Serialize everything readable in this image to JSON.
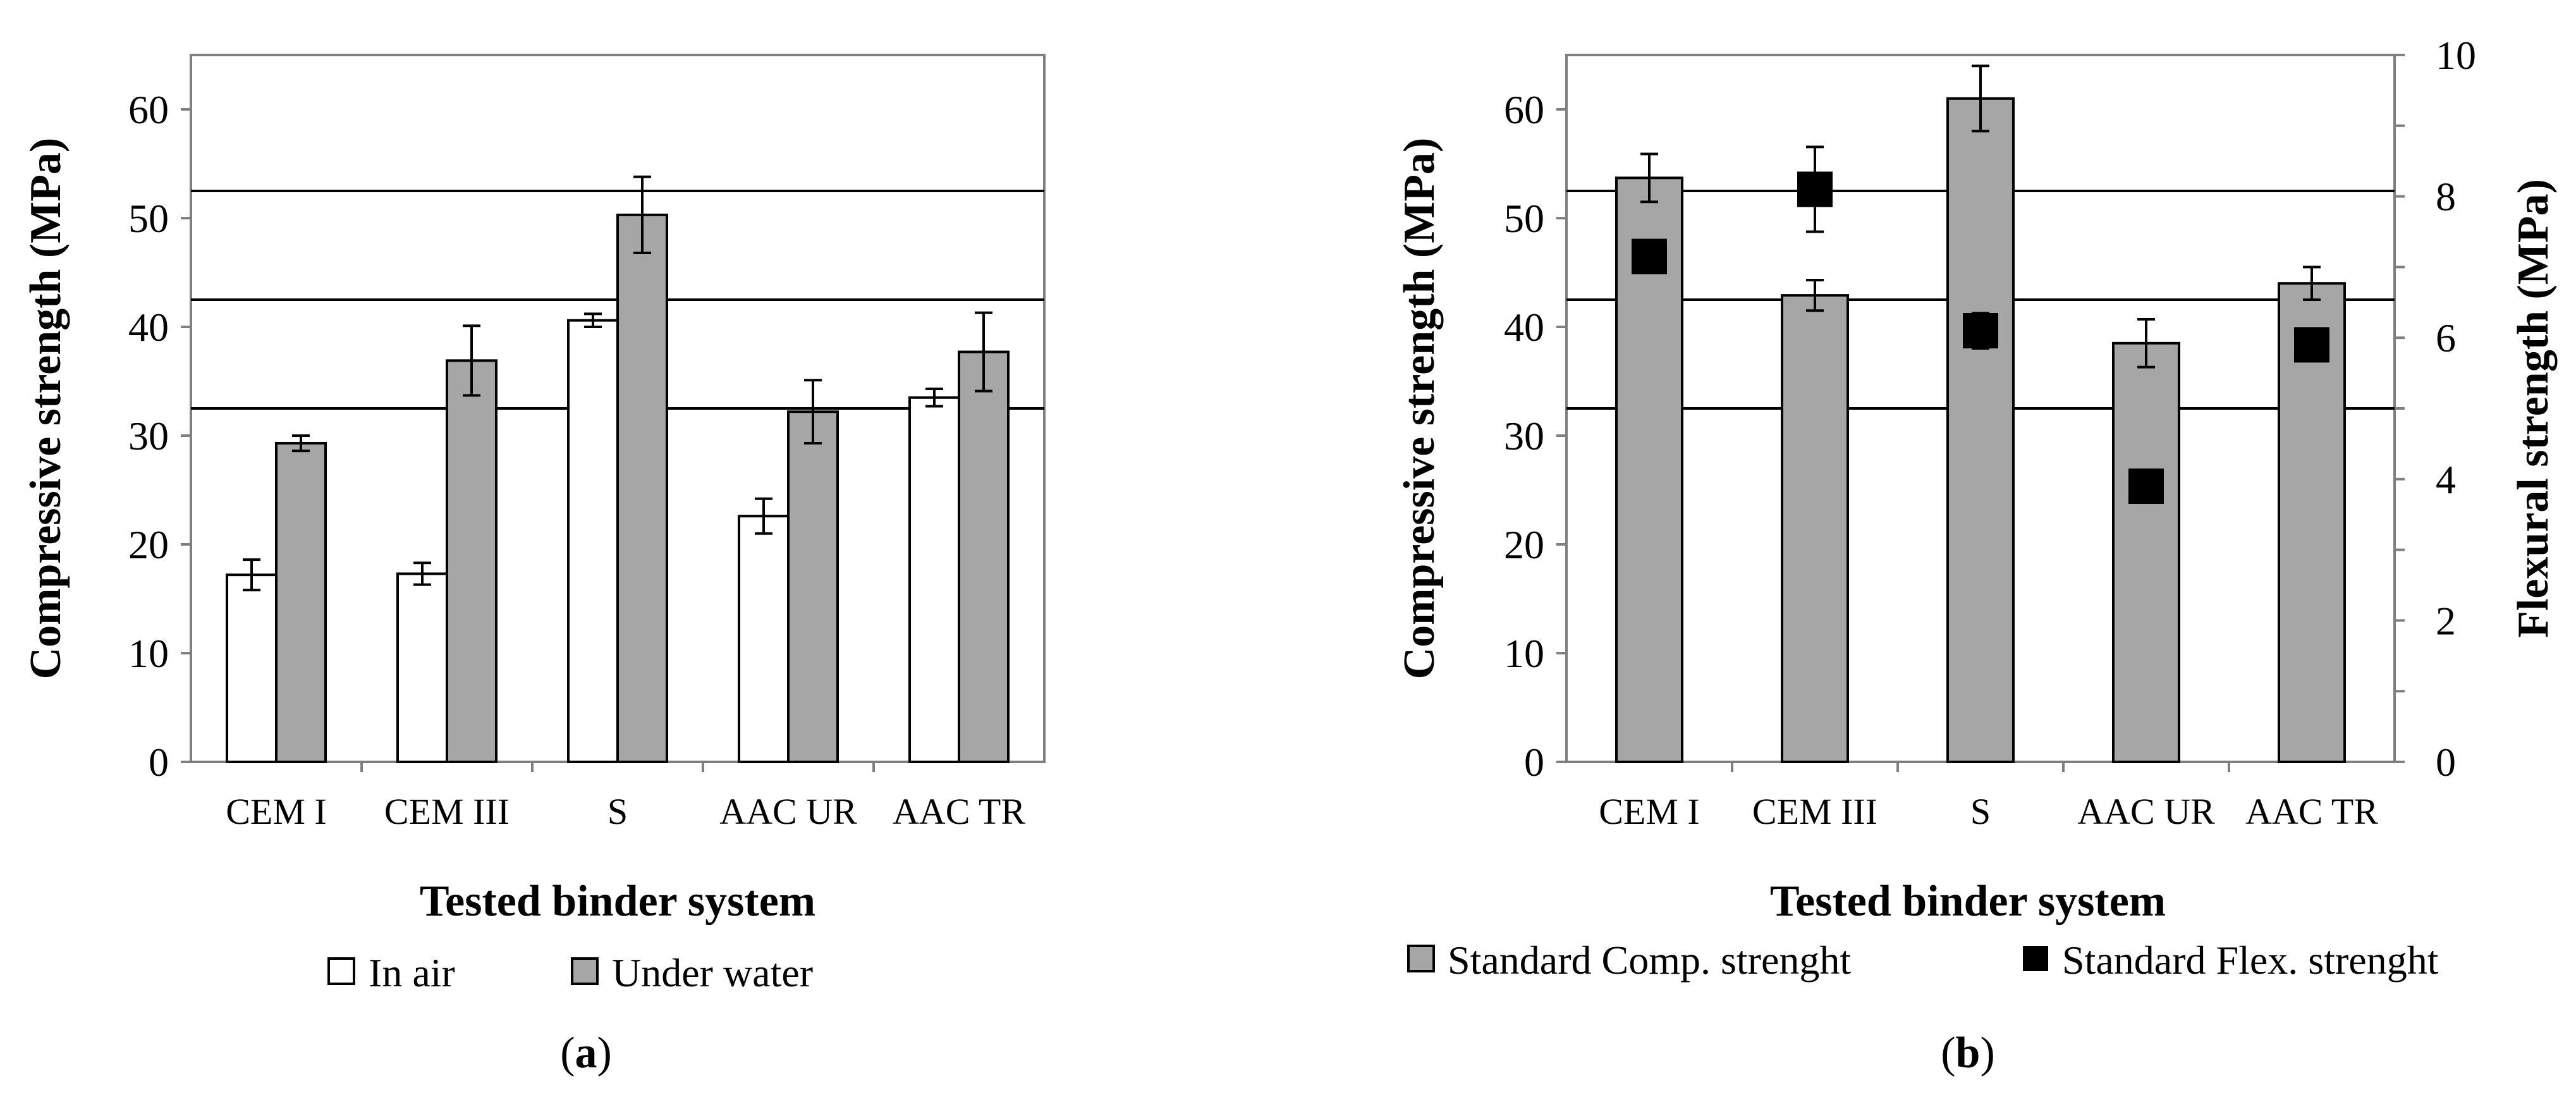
{
  "chart_data": [
    {
      "panel": "a",
      "type": "bar",
      "caption": {
        "open": "(",
        "letter": "a",
        "close": ")"
      },
      "xlabel": "Tested binder system",
      "ylabel": "Compressive strength (MPa)",
      "ylim": [
        0,
        65
      ],
      "yticks": [
        "0",
        "10",
        "20",
        "30",
        "40",
        "50",
        "60"
      ],
      "categories": [
        "CEM I",
        "CEM III",
        "S",
        "AAC UR",
        "AAC TR"
      ],
      "series": [
        {
          "name": "In air",
          "color": "#ffffff",
          "values": [
            17.2,
            17.3,
            40.6,
            22.6,
            33.5
          ],
          "errors": [
            1.4,
            1.0,
            0.6,
            1.6,
            0.8
          ]
        },
        {
          "name": "Under water",
          "color": "#a6a6a6",
          "values": [
            29.3,
            36.9,
            50.3,
            32.2,
            37.7
          ],
          "errors": [
            0.7,
            3.2,
            3.5,
            2.9,
            3.6
          ]
        }
      ],
      "reference_lines": [
        32.5,
        42.5,
        52.5
      ],
      "legend_position": "bottom"
    },
    {
      "panel": "b",
      "type": "bar",
      "caption": {
        "open": "(",
        "letter": "b",
        "close": ")"
      },
      "xlabel": "Tested binder system",
      "ylabel": "Compressive strength (MPa)",
      "ylabel_right": "Flexural strength (MPa)",
      "ylim": [
        0,
        65
      ],
      "ylim_right": [
        0,
        10
      ],
      "yticks": [
        "0",
        "10",
        "20",
        "30",
        "40",
        "50",
        "60"
      ],
      "yticks_right": [
        "0",
        "2",
        "4",
        "6",
        "8",
        "10"
      ],
      "categories": [
        "CEM I",
        "CEM III",
        "S",
        "AAC UR",
        "AAC TR"
      ],
      "series": [
        {
          "name": "Standard Comp. strenght",
          "axis": "left",
          "color": "#a6a6a6",
          "values": [
            53.7,
            42.9,
            61.0,
            38.5,
            44.0
          ],
          "errors": [
            2.2,
            1.4,
            3.0,
            2.2,
            1.5
          ]
        },
        {
          "name": "Standard Flex. strenght",
          "axis": "right",
          "marker": "square",
          "color": "#000000",
          "values": [
            7.15,
            8.1,
            6.1,
            3.9,
            5.9
          ],
          "errors": [
            0,
            0.6,
            0.25,
            0,
            0
          ]
        }
      ],
      "reference_lines": [
        32.5,
        42.5,
        52.5
      ],
      "legend_position": "bottom"
    }
  ]
}
